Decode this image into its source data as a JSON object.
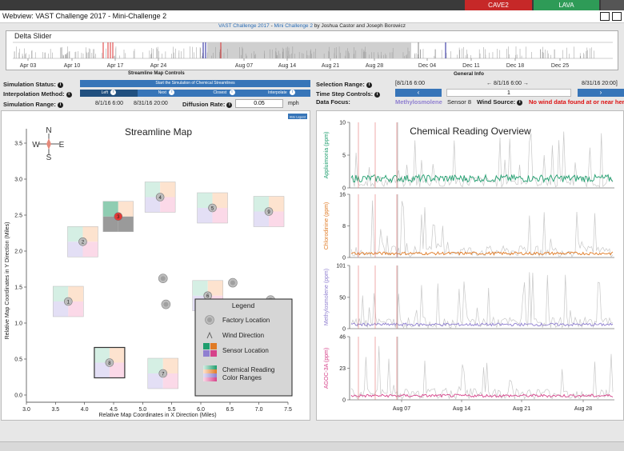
{
  "top_buttons": {
    "cave2": "CAVE2",
    "lava": "LAVA"
  },
  "colors": {
    "cave2": "#c62828",
    "lava": "#2e9b57",
    "blue": "#3775b8",
    "appluimonia": "#1f9e6e",
    "chlorodinine": "#e07a24",
    "methylosmolene": "#8f7fd0",
    "agoc": "#d6428a",
    "alert": "#d11"
  },
  "window": {
    "title": "Webview: VAST Challenge 2017 - Mini-Challenge 2"
  },
  "credit": {
    "part1": "VAST Challenge 2017",
    "sep": " - ",
    "part2": "Mini Challenge 2",
    "part3": " by Joshua Castor and Joseph Borowicz"
  },
  "delta_slider": {
    "title": "Delta Slider",
    "ticks": [
      "Apr 03",
      "Apr 10",
      "Apr 17",
      "Apr 24",
      "Aug 07",
      "Aug 14",
      "Aug 21",
      "Aug 28",
      "Dec 04",
      "Dec 11",
      "Dec 18",
      "Dec 25"
    ]
  },
  "section_labels": {
    "map_controls": "Streamline Map Controls",
    "general_info": "General Info"
  },
  "controls": {
    "simulation_status": "Simulation Status:",
    "start_button": "Start the Simulation of Chemical Streamlines",
    "interpolation_method": "Interpolation Method:",
    "methods": [
      "Left",
      "Next",
      "Closest",
      "Interpolate"
    ],
    "simulation_range": "Simulation Range:",
    "range_start": "8/1/16 6:00",
    "range_end": "8/31/16 20:00",
    "diffusion_rate": "Diffusion Rate:",
    "diffusion_value": "0.05",
    "diffusion_unit": "mph"
  },
  "general_info": {
    "selection_range": "Selection Range:",
    "sel_start": "[8/1/16 6:00",
    "sel_current": "← 8/1/16 6:00 →",
    "sel_end": "8/31/16 20:00]",
    "time_step_controls": "Time Step Controls:",
    "time_step_value": "1",
    "data_focus": "Data Focus:",
    "focus_chemical": "Methylosmolene",
    "focus_sensor": "Sensor 8",
    "wind_source": "Wind Source:",
    "wind_message": "No wind data found at or near here"
  },
  "streamline_map": {
    "title": "Streamline Map",
    "hide_legend": "Hide Legend",
    "compass": {
      "n": "N",
      "s": "S",
      "e": "E",
      "w": "W"
    },
    "xlabel": "Relative Map Coordinates in X Direction (Miles)",
    "ylabel": "Relative Map Coordinates in Y Direction (Miles)",
    "xticks": [
      "3.0",
      "3.5",
      "4.0",
      "4.5",
      "5.0",
      "5.5",
      "6.0",
      "6.5",
      "7.0",
      "7.5"
    ],
    "yticks": [
      "0.0",
      "0.5",
      "1.0",
      "1.5",
      "2.0",
      "2.5",
      "3.0",
      "3.5"
    ],
    "sensors": [
      {
        "id": "1",
        "x": 3.72,
        "y": 1.3
      },
      {
        "id": "2",
        "x": 3.97,
        "y": 2.13
      },
      {
        "id": "3",
        "x": 4.58,
        "y": 2.48
      },
      {
        "id": "4",
        "x": 5.3,
        "y": 2.75
      },
      {
        "id": "5",
        "x": 6.2,
        "y": 2.6
      },
      {
        "id": "6",
        "x": 6.12,
        "y": 1.38
      },
      {
        "id": "7",
        "x": 5.35,
        "y": 0.3
      },
      {
        "id": "8",
        "x": 4.43,
        "y": 0.45
      },
      {
        "id": "9",
        "x": 7.17,
        "y": 2.55
      }
    ],
    "factories": [
      {
        "x": 5.35,
        "y": 1.62
      },
      {
        "x": 5.4,
        "y": 1.26
      },
      {
        "x": 6.55,
        "y": 1.56
      },
      {
        "x": 7.2,
        "y": 1.32
      }
    ],
    "legend": {
      "title": "Legend",
      "factory": "Factory Location",
      "wind": "Wind Direction",
      "sensor": "Sensor Location",
      "ranges_line1": "Chemical Reading",
      "ranges_line2": "Color Ranges"
    }
  },
  "chemical_overview": {
    "title": "Chemical Reading Overview",
    "date_ticks": [
      "Aug 07",
      "Aug 14",
      "Aug 21",
      "Aug 28"
    ],
    "charts": [
      {
        "name": "Appluimonia (ppm)",
        "yticks": [
          "0",
          "5",
          "10"
        ],
        "ymax": 10,
        "color": "#1f9e6e"
      },
      {
        "name": "Chlorodinine (ppm)",
        "yticks": [
          "0",
          "8",
          "16"
        ],
        "ymax": 16,
        "color": "#e07a24"
      },
      {
        "name": "Methylosmolene (ppm)",
        "yticks": [
          "0",
          "50",
          "101"
        ],
        "ymax": 101,
        "color": "#8f7fd0"
      },
      {
        "name": "AGOC-3A (ppm)",
        "yticks": [
          "0",
          "23",
          "46"
        ],
        "ymax": 46,
        "color": "#d6428a"
      }
    ]
  }
}
